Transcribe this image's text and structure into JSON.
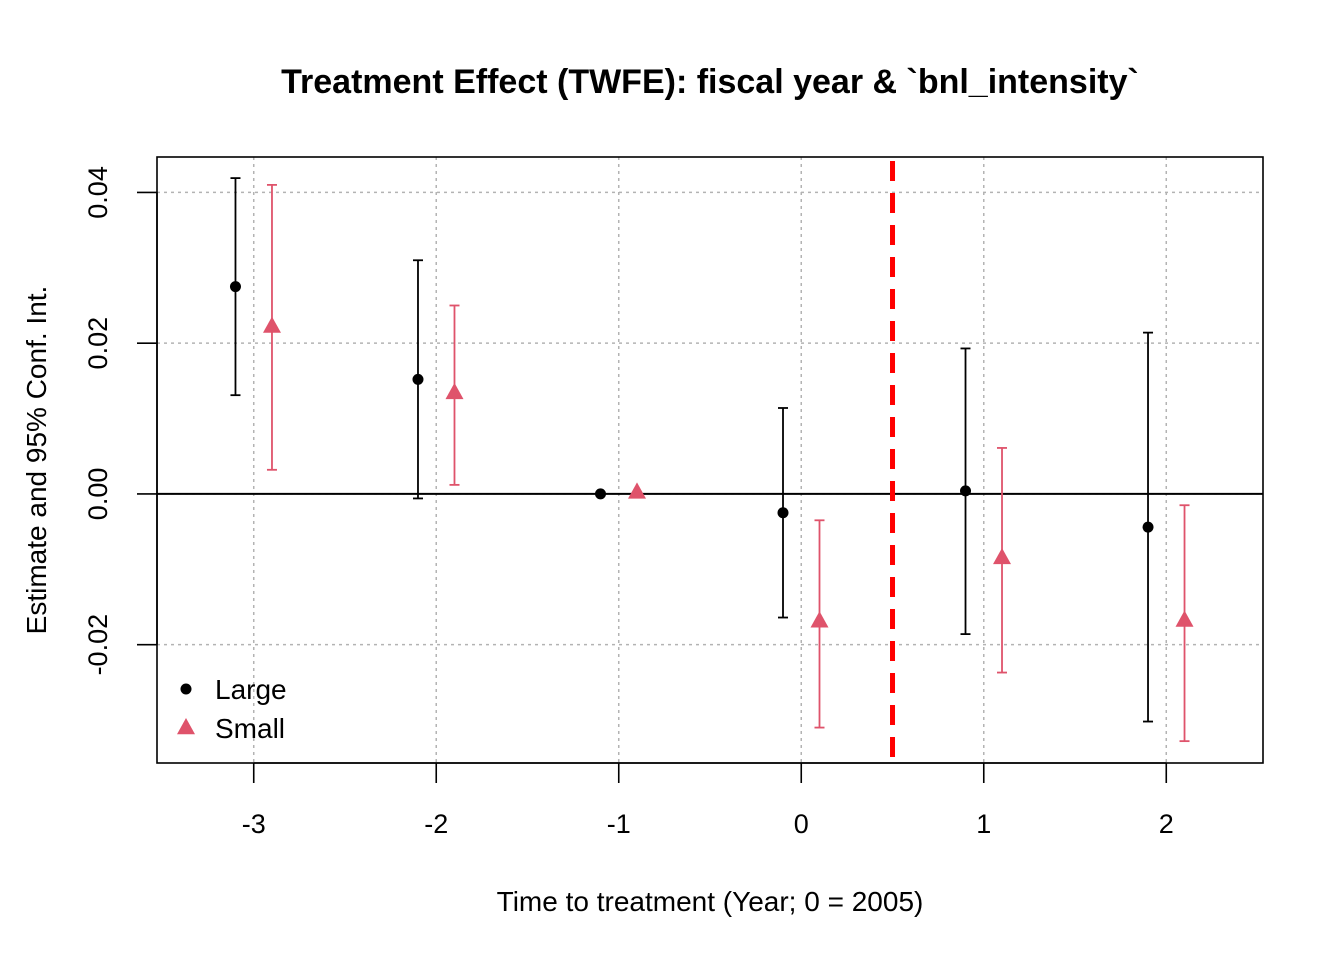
{
  "chart_data": {
    "type": "scatter",
    "title": "Treatment Effect (TWFE): fiscal year & `bnl_intensity`",
    "xlabel": "Time to treatment (Year; 0 = 2005)",
    "ylabel": "Estimate and 95% Conf. Int.",
    "xlim": [
      -3.53,
      2.53
    ],
    "ylim": [
      -0.0357,
      0.0447
    ],
    "x_ticks": [
      -3,
      -2,
      -1,
      0,
      1,
      2
    ],
    "x_tick_labels": [
      "-3",
      "-2",
      "-1",
      "0",
      "1",
      "2"
    ],
    "y_ticks": [
      -0.02,
      0.0,
      0.02,
      0.04
    ],
    "y_tick_labels": [
      "-0.02",
      "0.00",
      "0.02",
      "0.04"
    ],
    "grid": true,
    "zero_line": 0,
    "treatment_line_x": 0.5,
    "treatment_line_color": "#FF0000",
    "legend_position": "bottom-left",
    "series": [
      {
        "name": "Large",
        "color": "#000000",
        "marker": "circle",
        "x": [
          -3.1,
          -2.1,
          -1.1,
          -0.1,
          0.9,
          1.9
        ],
        "y": [
          0.0275,
          0.0152,
          0.0,
          -0.0025,
          0.0004,
          -0.0044
        ],
        "ci_low": [
          0.0131,
          -0.0006,
          0.0,
          -0.0164,
          -0.0186,
          -0.0302
        ],
        "ci_high": [
          0.0419,
          0.031,
          0.0,
          0.0114,
          0.0193,
          0.0214
        ]
      },
      {
        "name": "Small",
        "color": "#DF536B",
        "marker": "triangle",
        "x": [
          -2.9,
          -1.9,
          -0.9,
          0.1,
          1.1,
          2.1
        ],
        "y": [
          0.0222,
          0.0134,
          0.0002,
          -0.0169,
          -0.0085,
          -0.0168
        ],
        "ci_low": [
          0.0032,
          0.0012,
          0.0002,
          -0.031,
          -0.0237,
          -0.0328
        ],
        "ci_high": [
          0.041,
          0.025,
          0.0002,
          -0.0035,
          0.0061,
          -0.0015
        ]
      }
    ]
  }
}
